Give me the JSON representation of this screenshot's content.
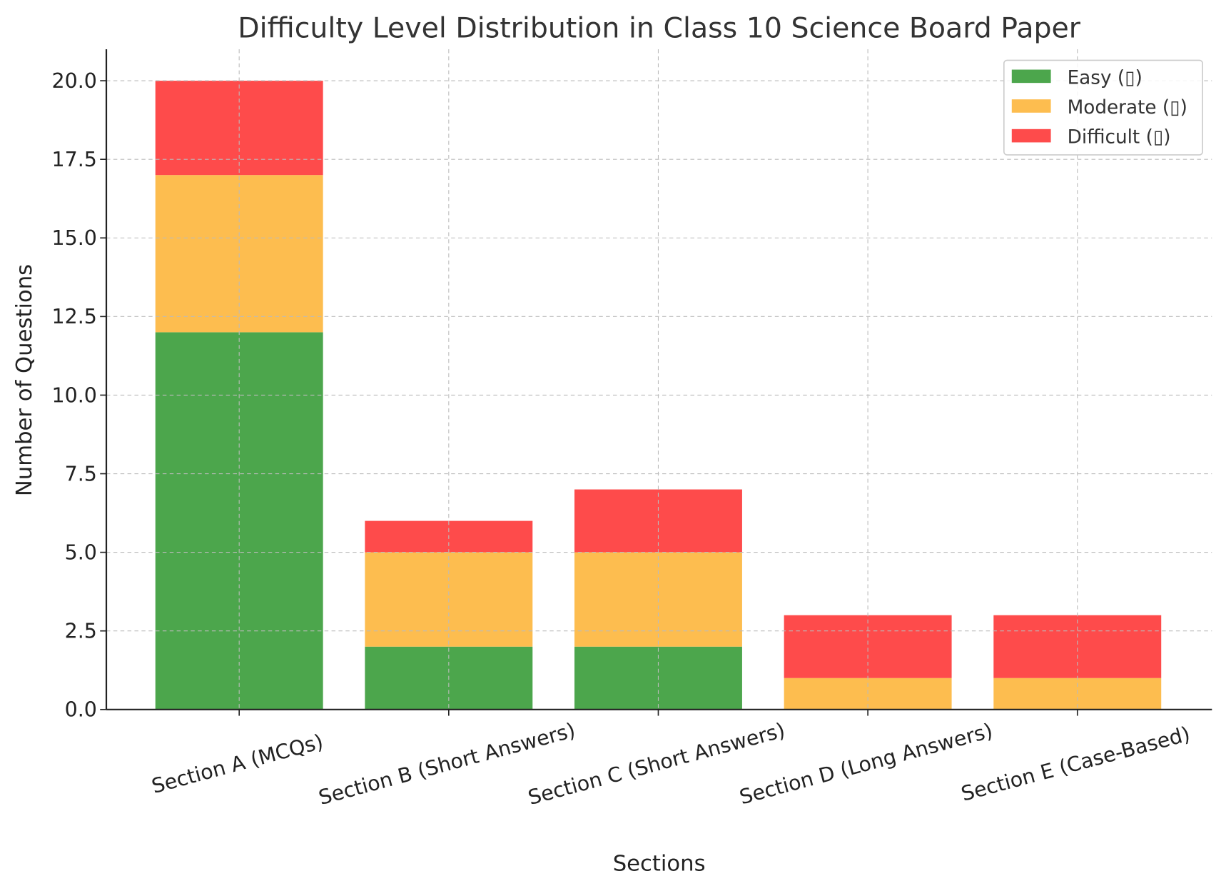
{
  "chart_data": {
    "type": "bar",
    "stacked": true,
    "title": "Difficulty Level Distribution in Class 10 Science Board Paper",
    "xlabel": "Sections",
    "ylabel": "Number of Questions",
    "categories": [
      "Section A (MCQs)",
      "Section B (Short Answers)",
      "Section C (Short Answers)",
      "Section D (Long Answers)",
      "Section E (Case-Based)"
    ],
    "series": [
      {
        "name": "Easy (▯)",
        "color": "#4ca64c",
        "values": [
          12,
          2,
          2,
          0,
          0
        ]
      },
      {
        "name": "Moderate (▯)",
        "color": "#fdbd4f",
        "values": [
          5,
          3,
          3,
          1,
          1
        ]
      },
      {
        "name": "Difficult (▯)",
        "color": "#fe4b4b",
        "values": [
          3,
          1,
          2,
          2,
          2
        ]
      }
    ],
    "ylim": [
      0,
      21
    ],
    "yticks": [
      "0.0",
      "2.5",
      "5.0",
      "7.5",
      "10.0",
      "12.5",
      "15.0",
      "17.5",
      "20.0"
    ],
    "grid": true,
    "legend_position": "top-right"
  }
}
